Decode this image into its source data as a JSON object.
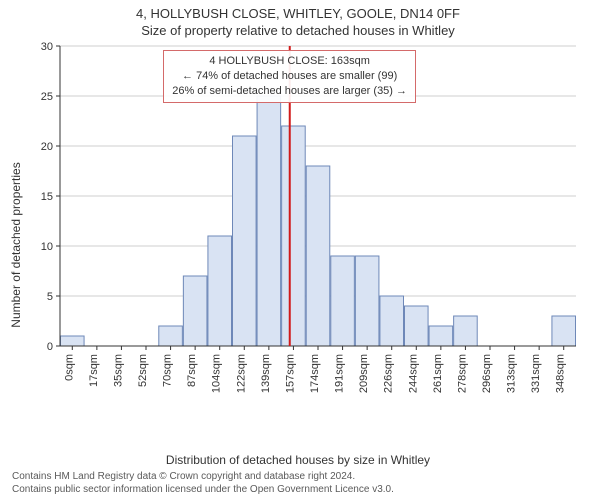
{
  "titles": {
    "main": "4, HOLLYBUSH CLOSE, WHITLEY, GOOLE, DN14 0FF",
    "sub": "Size of property relative to detached houses in Whitley"
  },
  "axes": {
    "ylabel": "Number of detached properties",
    "xlabel": "Distribution of detached houses by size in Whitley",
    "ylim": [
      0,
      30
    ],
    "ytick_step": 5,
    "label_fontsize": 12,
    "tick_fontsize": 11
  },
  "chart": {
    "type": "histogram",
    "categories": [
      "0sqm",
      "17sqm",
      "35sqm",
      "52sqm",
      "70sqm",
      "87sqm",
      "104sqm",
      "122sqm",
      "139sqm",
      "157sqm",
      "174sqm",
      "191sqm",
      "209sqm",
      "226sqm",
      "244sqm",
      "261sqm",
      "278sqm",
      "296sqm",
      "313sqm",
      "331sqm",
      "348sqm"
    ],
    "values": [
      1,
      0,
      0,
      0,
      2,
      7,
      11,
      21,
      25,
      22,
      18,
      9,
      9,
      5,
      4,
      2,
      3,
      0,
      0,
      0,
      3
    ],
    "bar_fill": "#d9e3f3",
    "bar_stroke": "#6e88b8",
    "bar_stroke_width": 1,
    "grid_color": "#cfcfcf",
    "axis_color": "#333333",
    "background_color": "#ffffff",
    "marker_line": {
      "x_category_index": 9.35,
      "color": "#d11a1a",
      "width": 2
    }
  },
  "annotation": {
    "line1": "4 HOLLYBUSH CLOSE: 163sqm",
    "line2": "← 74% of detached houses are smaller (99)",
    "line3": "26% of semi-detached houses are larger (35) →",
    "border_color": "#d46a6a",
    "fontsize": 11
  },
  "footer": {
    "line1": "Contains HM Land Registry data © Crown copyright and database right 2024.",
    "line2": "Contains public sector information licensed under the Open Government Licence v3.0."
  },
  "colors": {
    "text": "#333333",
    "footer_text": "#5a5a5a"
  }
}
